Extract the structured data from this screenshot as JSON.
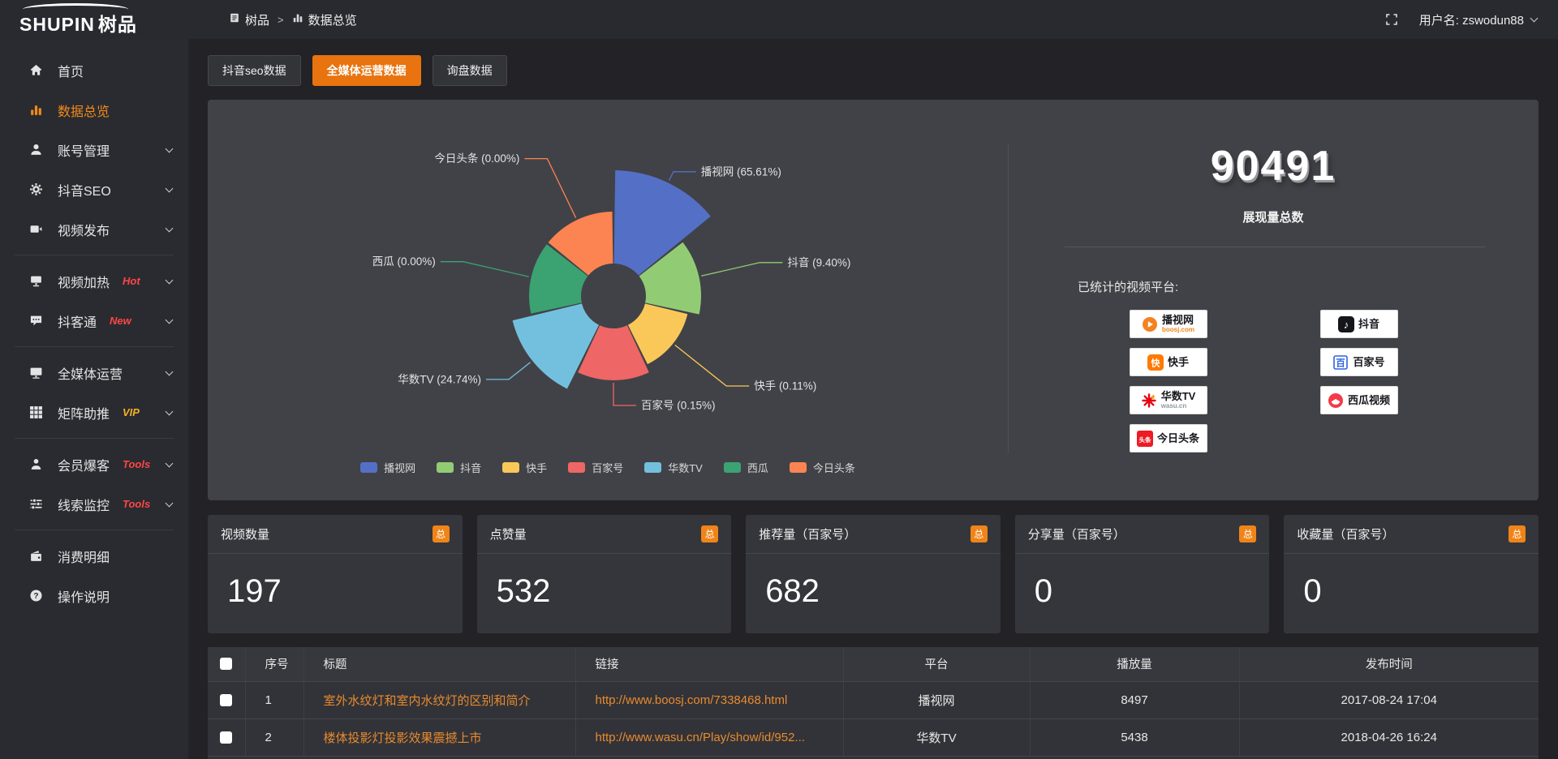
{
  "brand": {
    "logo_main": "SHUPIN",
    "logo_sub": "树品"
  },
  "topbar": {
    "breadcrumb": [
      {
        "name": "shupin",
        "icon": "doc-icon",
        "label": "树品"
      },
      {
        "name": "data-overview",
        "icon": "bars-icon",
        "label": "数据总览"
      }
    ],
    "breadcrumb_separator": ">",
    "username": "用户名: zswodun88"
  },
  "sidebar": {
    "items": [
      {
        "name": "home",
        "icon": "home-icon",
        "label": "首页"
      },
      {
        "name": "data-overview",
        "icon": "bars-icon",
        "label": "数据总览",
        "active": true
      },
      {
        "name": "account-manage",
        "icon": "user-icon",
        "label": "账号管理",
        "chevron": true
      },
      {
        "name": "douyin-seo",
        "icon": "gear-icon",
        "label": "抖音SEO",
        "chevron": true
      },
      {
        "name": "video-publish",
        "icon": "video-icon",
        "label": "视频发布",
        "chevron": true
      },
      {
        "divider": true
      },
      {
        "name": "video-heat",
        "icon": "screen-icon",
        "label": "视频加热",
        "badge": "Hot",
        "badge_color": "#ff4545",
        "chevron": true
      },
      {
        "name": "douketong",
        "icon": "chat-icon",
        "label": "抖客通",
        "badge": "New",
        "badge_color": "#ff4545",
        "chevron": true
      },
      {
        "divider": true
      },
      {
        "name": "media-operation",
        "icon": "monitor-icon",
        "label": "全媒体运营",
        "chevron": true
      },
      {
        "name": "matrix-boost",
        "icon": "grid-icon",
        "label": "矩阵助推",
        "badge": "VIP",
        "badge_color": "#f5b026",
        "chevron": true
      },
      {
        "divider": true
      },
      {
        "name": "member-burst",
        "icon": "member-icon",
        "label": "会员爆客",
        "badge": "Tools",
        "badge_color": "#ff4545",
        "chevron": true
      },
      {
        "name": "clue-monitor",
        "icon": "sliders-icon",
        "label": "线索监控",
        "badge": "Tools",
        "badge_color": "#ff4545",
        "chevron": true
      },
      {
        "divider": true
      },
      {
        "name": "consume-detail",
        "icon": "wallet-icon",
        "label": "消费明细"
      },
      {
        "name": "operation-guide",
        "icon": "help-icon",
        "label": "操作说明"
      }
    ]
  },
  "tabs": [
    {
      "name": "douyin-seo-data",
      "label": "抖音seo数据"
    },
    {
      "name": "media-operation-data",
      "label": "全媒体运营数据",
      "active": true
    },
    {
      "name": "inquiry-data",
      "label": "询盘数据"
    }
  ],
  "chart_data": {
    "type": "pie",
    "variant": "nightingale-rose",
    "categories": [
      "播视网",
      "抖音",
      "快手",
      "百家号",
      "华数TV",
      "西瓜",
      "今日头条"
    ],
    "values_percent": [
      65.61,
      9.4,
      0.11,
      0.15,
      24.74,
      0.0,
      0.0
    ],
    "labels": [
      "播视网 (65.61%)",
      "抖音 (9.40%)",
      "快手 (0.11%)",
      "百家号 (0.15%)",
      "华数TV (24.74%)",
      "西瓜 (0.00%)",
      "今日头条 (0.00%)"
    ],
    "colors": [
      "#5470c6",
      "#91cc75",
      "#fac858",
      "#ee6666",
      "#73c0de",
      "#3ba272",
      "#fc8452"
    ],
    "legend": [
      "播视网",
      "抖音",
      "快手",
      "百家号",
      "华数TV",
      "西瓜",
      "今日头条"
    ],
    "legend_position": "bottom",
    "layout": {
      "equal_angles": true,
      "inner_radius": 40,
      "display_radii": [
        155,
        108,
        94,
        104,
        128,
        104,
        104
      ],
      "label_radii": [
        170,
        185,
        178,
        135,
        165,
        190,
        188
      ]
    }
  },
  "summary": {
    "total_value": "90491",
    "total_label": "展现量总数",
    "platforms_title": "已统计的视频平台:",
    "platforms": [
      {
        "name": "播视网",
        "sub": "boosj.com",
        "icon": "boosj-logo"
      },
      {
        "name": "抖音",
        "icon": "douyin-logo"
      },
      {
        "name": "快手",
        "icon": "kuaishou-logo"
      },
      {
        "name": "百家号",
        "icon": "baijiahao-logo"
      },
      {
        "name": "华数TV",
        "sub": "wasu.cn",
        "sub_gray": true,
        "icon": "wasu-logo"
      },
      {
        "name": "西瓜视频",
        "icon": "xigua-logo"
      },
      {
        "name": "今日头条",
        "icon": "toutiao-logo"
      }
    ]
  },
  "stat_cards": [
    {
      "name": "video-count",
      "label": "视频数量",
      "badge": "总",
      "value": "197"
    },
    {
      "name": "like-count",
      "label": "点赞量",
      "badge": "总",
      "value": "532"
    },
    {
      "name": "recommend-count",
      "label": "推荐量（百家号）",
      "badge": "总",
      "value": "682"
    },
    {
      "name": "share-count",
      "label": "分享量（百家号）",
      "badge": "总",
      "value": "0"
    },
    {
      "name": "favorite-count",
      "label": "收藏量（百家号）",
      "badge": "总",
      "value": "0"
    }
  ],
  "table": {
    "columns": [
      {
        "label": "",
        "type": "checkbox"
      },
      {
        "label": "序号",
        "align": "left"
      },
      {
        "label": "标题",
        "align": "left"
      },
      {
        "label": "链接",
        "align": "left"
      },
      {
        "label": "平台",
        "align": "center"
      },
      {
        "label": "播放量",
        "align": "center"
      },
      {
        "label": "发布时间",
        "align": "center"
      }
    ],
    "rows": [
      {
        "index": "1",
        "title": "室外水纹灯和室内水纹灯的区别和简介",
        "link": "http://www.boosj.com/7338468.html",
        "platform": "播视网",
        "plays": "8497",
        "time": "2017-08-24 17:04"
      },
      {
        "index": "2",
        "title": "楼体投影灯投影效果震撼上市",
        "link": "http://www.wasu.cn/Play/show/id/952...",
        "platform": "华数TV",
        "plays": "5438",
        "time": "2018-04-26 16:24"
      }
    ]
  }
}
